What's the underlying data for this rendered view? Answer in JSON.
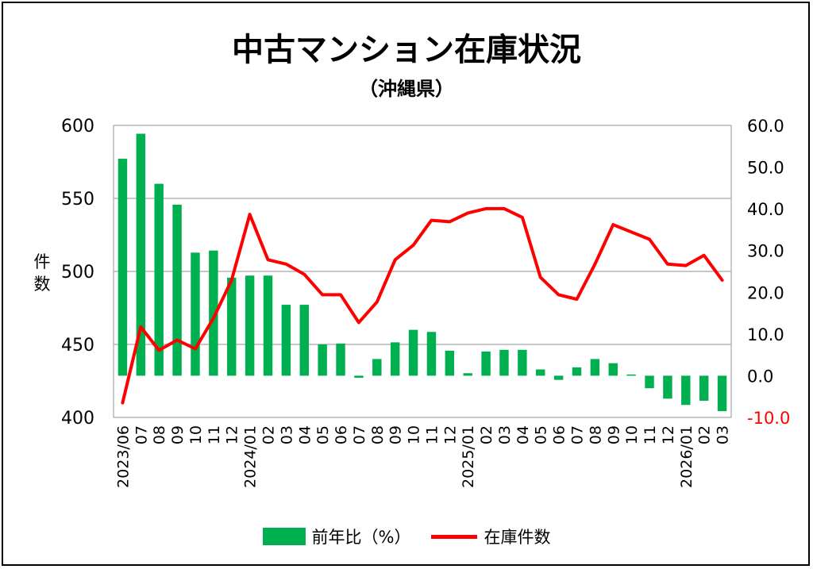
{
  "chart_data": {
    "type": "bar+line",
    "title": "中古マンション在庫状況",
    "subtitle": "（沖縄県）",
    "ylabel": "件数",
    "categories": [
      "2023/06",
      "07",
      "08",
      "09",
      "10",
      "11",
      "12",
      "2024/01",
      "02",
      "03",
      "04",
      "05",
      "06",
      "07",
      "08",
      "09",
      "10",
      "11",
      "12",
      "2025/01",
      "02",
      "03",
      "04",
      "05",
      "06",
      "07",
      "08",
      "09",
      "10",
      "11",
      "12",
      "2026/01",
      "02",
      "03"
    ],
    "left_axis": {
      "min": 400,
      "max": 600,
      "ticks": [
        "600",
        "550",
        "500",
        "450",
        "400"
      ]
    },
    "right_axis": {
      "min": -10,
      "max": 60,
      "ticks": [
        "60.0",
        "50.0",
        "40.0",
        "30.0",
        "20.0",
        "10.0",
        "0.0",
        "-10.0"
      ],
      "negative_color": "#ff0000"
    },
    "series": [
      {
        "name": "前年比（%）",
        "type": "bar",
        "axis": "right",
        "color": "#00b050",
        "values": [
          52.0,
          58.0,
          46.0,
          41.0,
          29.5,
          30.0,
          23.5,
          24.0,
          24.0,
          17.0,
          17.0,
          7.5,
          7.7,
          -0.5,
          4.0,
          8.0,
          11.0,
          10.5,
          6.0,
          0.6,
          5.8,
          6.2,
          6.2,
          1.5,
          -1.0,
          2.0,
          4.0,
          3.0,
          0.3,
          -3.0,
          -5.5,
          -7.0,
          -6.0,
          -8.5
        ]
      },
      {
        "name": "在庫件数",
        "type": "line",
        "axis": "left",
        "color": "#ff0000",
        "values": [
          410,
          462,
          446,
          453,
          447,
          468,
          494,
          539,
          508,
          505,
          498,
          484,
          484,
          465,
          479,
          508,
          518,
          535,
          534,
          540,
          543,
          543,
          537,
          496,
          484,
          481,
          505,
          532,
          527,
          522,
          505,
          504,
          511,
          494
        ]
      }
    ]
  },
  "legend": {
    "bar_label": "前年比（%）",
    "line_label": "在庫件数"
  }
}
